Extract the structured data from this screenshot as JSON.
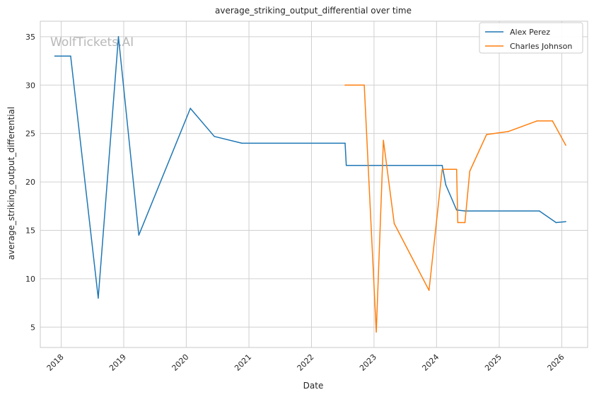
{
  "chart_data": {
    "type": "line",
    "title": "average_striking_output_differential over time",
    "xlabel": "Date",
    "ylabel": "average_striking_output_differential",
    "watermark": "WolfTickets.AI",
    "grid": true,
    "legend_position": "top-right",
    "x_ticks": [
      "2018",
      "2019",
      "2020",
      "2021",
      "2022",
      "2023",
      "2024",
      "2025",
      "2026"
    ],
    "y_ticks": [
      5,
      10,
      15,
      20,
      25,
      30,
      35
    ],
    "xlim": [
      "2017-09-01",
      "2026-06-01"
    ],
    "ylim": [
      2.9,
      36.6
    ],
    "series": [
      {
        "name": "Alex Perez",
        "color": "#1f77b4",
        "points": [
          {
            "x": "2017-11-25",
            "y": 33.0
          },
          {
            "x": "2018-02-25",
            "y": 33.0
          },
          {
            "x": "2018-08-05",
            "y": 8.0
          },
          {
            "x": "2018-12-01",
            "y": 35.0
          },
          {
            "x": "2019-03-30",
            "y": 14.5
          },
          {
            "x": "2020-01-25",
            "y": 27.6
          },
          {
            "x": "2020-06-13",
            "y": 24.7
          },
          {
            "x": "2020-11-21",
            "y": 24.0
          },
          {
            "x": "2022-07-16",
            "y": 24.0
          },
          {
            "x": "2022-07-23",
            "y": 21.7
          },
          {
            "x": "2024-02-03",
            "y": 21.7
          },
          {
            "x": "2024-02-24",
            "y": 19.7
          },
          {
            "x": "2024-04-27",
            "y": 17.1
          },
          {
            "x": "2024-06-15",
            "y": 17.0
          },
          {
            "x": "2025-08-23",
            "y": 17.0
          },
          {
            "x": "2025-11-29",
            "y": 15.8
          },
          {
            "x": "2026-01-24",
            "y": 15.9
          }
        ]
      },
      {
        "name": "Charles Johnson",
        "color": "#ff7f0e",
        "points": [
          {
            "x": "2022-07-16",
            "y": 30.0
          },
          {
            "x": "2022-11-05",
            "y": 30.0
          },
          {
            "x": "2023-01-14",
            "y": 4.5
          },
          {
            "x": "2023-02-25",
            "y": 24.3
          },
          {
            "x": "2023-04-29",
            "y": 15.7
          },
          {
            "x": "2023-11-18",
            "y": 8.8
          },
          {
            "x": "2024-02-03",
            "y": 21.3
          },
          {
            "x": "2024-04-27",
            "y": 21.3
          },
          {
            "x": "2024-05-04",
            "y": 15.8
          },
          {
            "x": "2024-06-15",
            "y": 15.8
          },
          {
            "x": "2024-07-13",
            "y": 21.1
          },
          {
            "x": "2024-10-19",
            "y": 24.9
          },
          {
            "x": "2025-02-22",
            "y": 25.2
          },
          {
            "x": "2025-08-09",
            "y": 26.3
          },
          {
            "x": "2025-11-08",
            "y": 26.3
          },
          {
            "x": "2026-01-24",
            "y": 23.8
          }
        ]
      }
    ]
  }
}
